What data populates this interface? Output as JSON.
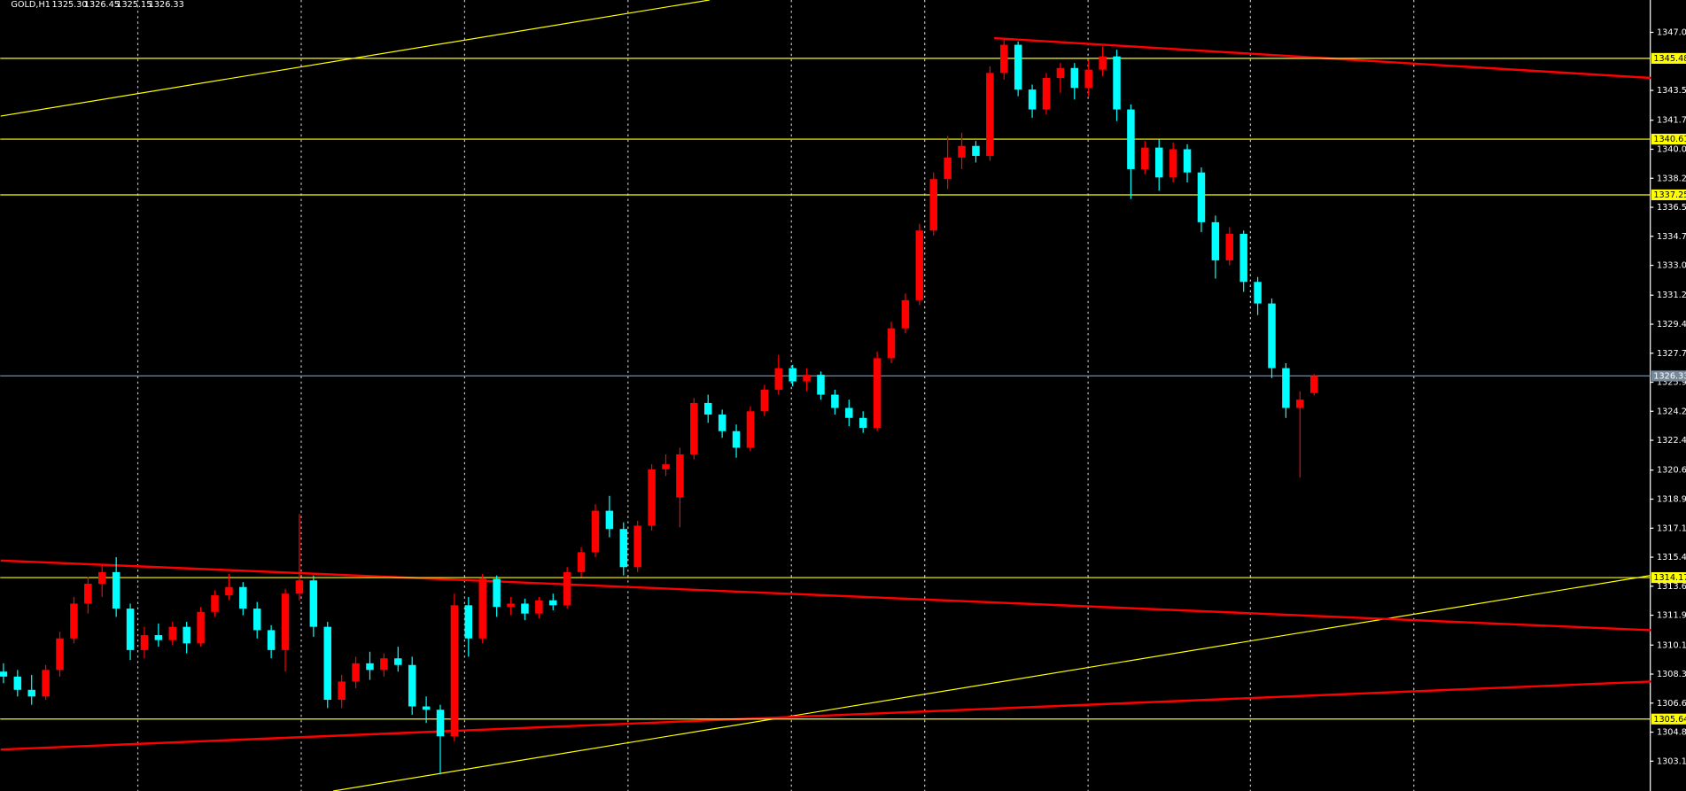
{
  "chart_data": {
    "type": "candlestick",
    "title": "GOLD,H1",
    "title_values": [
      "1325.30",
      "1326.45",
      "1325.15",
      "1326.33"
    ],
    "up_color": "#ff0000",
    "down_color": "#00ffff",
    "candles": [
      [
        1308.5,
        1309.0,
        1307.8,
        1308.2
      ],
      [
        1308.2,
        1308.6,
        1307.0,
        1307.4
      ],
      [
        1307.4,
        1308.3,
        1306.5,
        1307.0
      ],
      [
        1307.0,
        1308.9,
        1306.8,
        1308.6
      ],
      [
        1308.6,
        1310.9,
        1308.2,
        1310.5
      ],
      [
        1310.5,
        1313.0,
        1310.2,
        1312.6
      ],
      [
        1312.6,
        1314.2,
        1312.0,
        1313.8
      ],
      [
        1313.8,
        1315.0,
        1313.0,
        1314.5
      ],
      [
        1314.5,
        1315.4,
        1311.8,
        1312.3
      ],
      [
        1312.3,
        1312.6,
        1309.2,
        1309.8
      ],
      [
        1309.8,
        1311.2,
        1309.3,
        1310.7
      ],
      [
        1310.7,
        1311.4,
        1310.0,
        1310.4
      ],
      [
        1310.4,
        1311.5,
        1310.1,
        1311.2
      ],
      [
        1311.2,
        1311.5,
        1309.6,
        1310.2
      ],
      [
        1310.2,
        1312.4,
        1310.0,
        1312.1
      ],
      [
        1312.1,
        1313.4,
        1311.8,
        1313.1
      ],
      [
        1313.1,
        1314.4,
        1312.8,
        1313.6
      ],
      [
        1313.6,
        1313.9,
        1311.9,
        1312.3
      ],
      [
        1312.3,
        1312.7,
        1310.5,
        1311.0
      ],
      [
        1311.0,
        1311.3,
        1309.3,
        1309.8
      ],
      [
        1309.8,
        1313.5,
        1308.5,
        1313.2
      ],
      [
        1313.2,
        1318.0,
        1312.8,
        1314.0
      ],
      [
        1314.0,
        1314.3,
        1310.6,
        1311.2
      ],
      [
        1311.2,
        1311.5,
        1306.3,
        1306.8
      ],
      [
        1306.8,
        1308.3,
        1306.3,
        1307.9
      ],
      [
        1307.9,
        1309.4,
        1307.5,
        1309.0
      ],
      [
        1309.0,
        1309.7,
        1308.0,
        1308.6
      ],
      [
        1308.6,
        1309.6,
        1308.2,
        1309.3
      ],
      [
        1309.3,
        1310.0,
        1308.5,
        1308.9
      ],
      [
        1308.9,
        1309.4,
        1305.9,
        1306.4
      ],
      [
        1306.4,
        1307.0,
        1305.4,
        1306.2
      ],
      [
        1306.2,
        1306.5,
        1302.3,
        1304.6
      ],
      [
        1304.6,
        1313.2,
        1304.3,
        1312.5
      ],
      [
        1312.5,
        1313.0,
        1309.4,
        1310.5
      ],
      [
        1310.5,
        1314.4,
        1310.2,
        1314.1
      ],
      [
        1314.1,
        1314.3,
        1311.8,
        1312.4
      ],
      [
        1312.4,
        1313.0,
        1311.9,
        1312.6
      ],
      [
        1312.6,
        1312.9,
        1311.6,
        1312.0
      ],
      [
        1312.0,
        1313.0,
        1311.7,
        1312.8
      ],
      [
        1312.8,
        1313.2,
        1312.2,
        1312.5
      ],
      [
        1312.5,
        1314.8,
        1312.3,
        1314.5
      ],
      [
        1314.5,
        1316.0,
        1314.2,
        1315.7
      ],
      [
        1315.7,
        1318.6,
        1315.4,
        1318.2
      ],
      [
        1318.2,
        1319.1,
        1316.6,
        1317.1
      ],
      [
        1317.1,
        1317.5,
        1314.3,
        1314.8
      ],
      [
        1314.8,
        1317.6,
        1314.5,
        1317.3
      ],
      [
        1317.3,
        1321.0,
        1317.0,
        1320.7
      ],
      [
        1320.7,
        1321.6,
        1320.3,
        1321.0
      ],
      [
        1319.0,
        1322.0,
        1317.2,
        1321.6
      ],
      [
        1321.6,
        1325.0,
        1321.3,
        1324.7
      ],
      [
        1324.7,
        1325.2,
        1323.5,
        1324.0
      ],
      [
        1324.0,
        1324.3,
        1322.6,
        1323.0
      ],
      [
        1323.0,
        1323.4,
        1321.4,
        1322.0
      ],
      [
        1322.0,
        1324.5,
        1321.8,
        1324.2
      ],
      [
        1324.2,
        1325.8,
        1323.9,
        1325.5
      ],
      [
        1325.5,
        1327.6,
        1325.2,
        1326.8
      ],
      [
        1326.8,
        1327.0,
        1325.7,
        1326.0
      ],
      [
        1326.0,
        1326.8,
        1325.4,
        1326.4
      ],
      [
        1326.4,
        1326.6,
        1324.9,
        1325.2
      ],
      [
        1325.2,
        1325.5,
        1324.0,
        1324.4
      ],
      [
        1324.4,
        1324.9,
        1323.3,
        1323.8
      ],
      [
        1323.8,
        1324.2,
        1322.9,
        1323.2
      ],
      [
        1323.2,
        1327.8,
        1323.0,
        1327.4
      ],
      [
        1327.4,
        1329.6,
        1327.1,
        1329.2
      ],
      [
        1329.2,
        1331.3,
        1328.9,
        1330.9
      ],
      [
        1330.9,
        1335.5,
        1330.6,
        1335.1
      ],
      [
        1335.1,
        1338.6,
        1334.8,
        1338.2
      ],
      [
        1338.2,
        1340.8,
        1337.6,
        1339.5
      ],
      [
        1339.5,
        1341.0,
        1338.8,
        1340.2
      ],
      [
        1340.2,
        1340.5,
        1339.2,
        1339.6
      ],
      [
        1339.6,
        1345.0,
        1339.3,
        1344.6
      ],
      [
        1344.6,
        1346.6,
        1344.2,
        1346.3
      ],
      [
        1346.3,
        1346.5,
        1343.2,
        1343.6
      ],
      [
        1343.6,
        1343.9,
        1341.9,
        1342.4
      ],
      [
        1342.4,
        1344.6,
        1342.1,
        1344.3
      ],
      [
        1344.3,
        1345.2,
        1343.4,
        1344.9
      ],
      [
        1344.9,
        1345.2,
        1343.0,
        1343.7
      ],
      [
        1343.7,
        1345.4,
        1343.2,
        1344.8
      ],
      [
        1344.8,
        1346.2,
        1344.4,
        1345.6
      ],
      [
        1345.6,
        1346.0,
        1341.7,
        1342.4
      ],
      [
        1342.4,
        1342.7,
        1337.0,
        1338.8
      ],
      [
        1338.8,
        1340.5,
        1338.5,
        1340.1
      ],
      [
        1340.1,
        1340.6,
        1337.5,
        1338.3
      ],
      [
        1338.3,
        1340.4,
        1338.0,
        1340.0
      ],
      [
        1340.0,
        1340.3,
        1338.0,
        1338.6
      ],
      [
        1338.6,
        1338.9,
        1335.0,
        1335.6
      ],
      [
        1335.6,
        1336.0,
        1332.2,
        1333.3
      ],
      [
        1333.3,
        1335.3,
        1333.0,
        1334.9
      ],
      [
        1334.9,
        1335.1,
        1331.4,
        1332.0
      ],
      [
        1332.0,
        1332.3,
        1330.0,
        1330.7
      ],
      [
        1330.7,
        1331.0,
        1326.2,
        1326.8
      ],
      [
        1326.8,
        1327.1,
        1323.8,
        1324.4
      ],
      [
        1324.4,
        1325.4,
        1320.2,
        1324.9
      ],
      [
        1325.3,
        1326.45,
        1325.15,
        1326.33
      ]
    ],
    "ylim": [
      1301.3,
      1349.0
    ],
    "yticks": [
      1347.05,
      1343.55,
      1341.75,
      {
        "value": 1340,
        "label": "1340.00"
      },
      1338.25,
      {
        "value": 1336.5,
        "label": "1336.50"
      },
      1334.75,
      {
        "value": 1333,
        "label": "1333.00"
      },
      {
        "value": 1331.2,
        "label": "1331.20"
      },
      1329.45,
      {
        "value": 1327.7,
        "label": "1327.70"
      },
      1325.95,
      {
        "value": 1324.2,
        "label": "1324.20"
      },
      1322.45,
      1320.65,
      {
        "value": 1318.9,
        "label": "1318.90"
      },
      1317.15,
      {
        "value": 1315.4,
        "label": "1315.40"
      },
      1313.65,
      {
        "value": 1311.9,
        "label": "1311.90"
      },
      {
        "value": 1310.1,
        "label": "1310.10"
      },
      1308.35,
      {
        "value": 1306.6,
        "label": "1306.60"
      },
      1304.85,
      {
        "value": 1303.1,
        "label": "1303.10"
      }
    ],
    "levels": [
      1345.48,
      1340.61,
      1337.25,
      1314.17,
      1305.64
    ],
    "level_color": "#ffff00",
    "bid": 1326.33,
    "bid_color": "#778899",
    "trendlines": [
      {
        "x": [
          -0.2,
          50.1
        ],
        "y": [
          1342.0,
          1349.0
        ],
        "color": "#ffff00"
      },
      {
        "x": [
          23.4,
          116.9
        ],
        "y": [
          1301.3,
          1314.3
        ],
        "color": "#ffff00"
      },
      {
        "x": [
          -0.2,
          116.9
        ],
        "y": [
          1315.2,
          1311.0
        ],
        "color": "#ff0000"
      },
      {
        "x": [
          -0.2,
          116.9
        ],
        "y": [
          1303.8,
          1307.9
        ],
        "color": "#ff0000"
      },
      {
        "x": [
          70.3,
          116.9
        ],
        "y": [
          1346.7,
          1344.3
        ],
        "color": "#ff0000"
      }
    ]
  }
}
